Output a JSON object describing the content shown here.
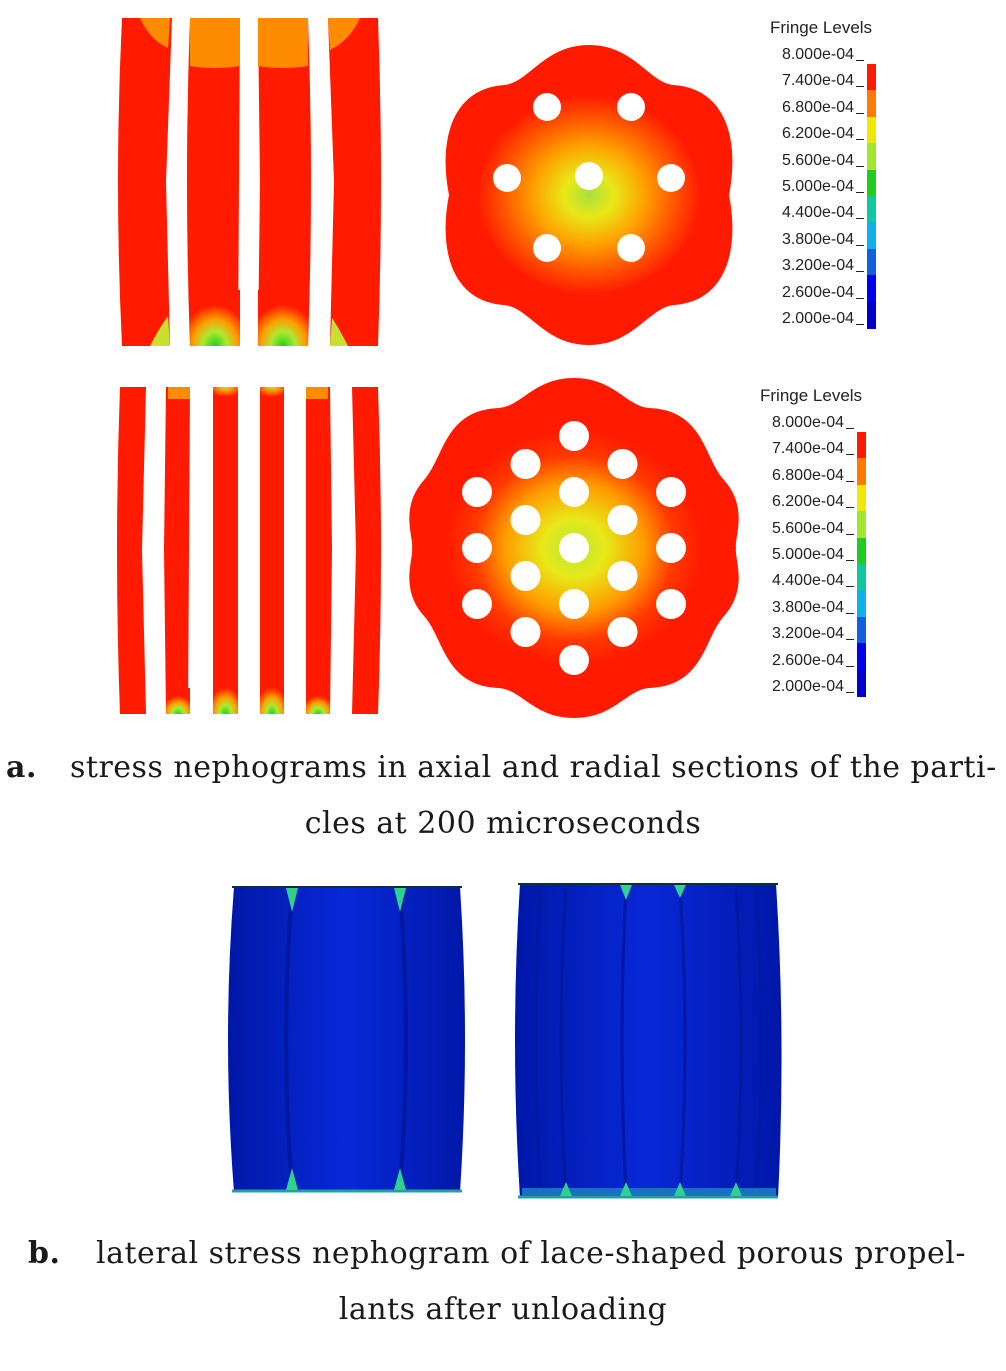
{
  "panel_a": {
    "legend_top": {
      "title": "Fringe Levels",
      "levels": [
        "8.000e-04",
        "7.400e-04",
        "6.800e-04",
        "6.200e-04",
        "5.600e-04",
        "5.000e-04",
        "4.400e-04",
        "3.800e-04",
        "3.200e-04",
        "2.600e-04",
        "2.000e-04"
      ]
    },
    "legend_bottom": {
      "title": "Fringe Levels",
      "levels": [
        "8.000e-04",
        "7.400e-04",
        "6.800e-04",
        "6.200e-04",
        "5.600e-04",
        "5.000e-04",
        "4.400e-04",
        "3.800e-04",
        "3.200e-04",
        "2.600e-04",
        "2.000e-04"
      ]
    },
    "colors": [
      "#ff1a00",
      "#ff7a00",
      "#f0e800",
      "#a0e830",
      "#20cc20",
      "#10c8a0",
      "#10b0e8",
      "#1060e0",
      "#0000ee",
      "#0000cc"
    ],
    "caption_label": "a.",
    "caption_line1": "stress nephograms in axial and radial sections of the parti-",
    "caption_line2": "cles at 200 microseconds"
  },
  "panel_b": {
    "caption_label": "b.",
    "caption_line1": "lateral stress nephogram of lace-shaped porous propel-",
    "caption_line2": "lants after unloading"
  }
}
